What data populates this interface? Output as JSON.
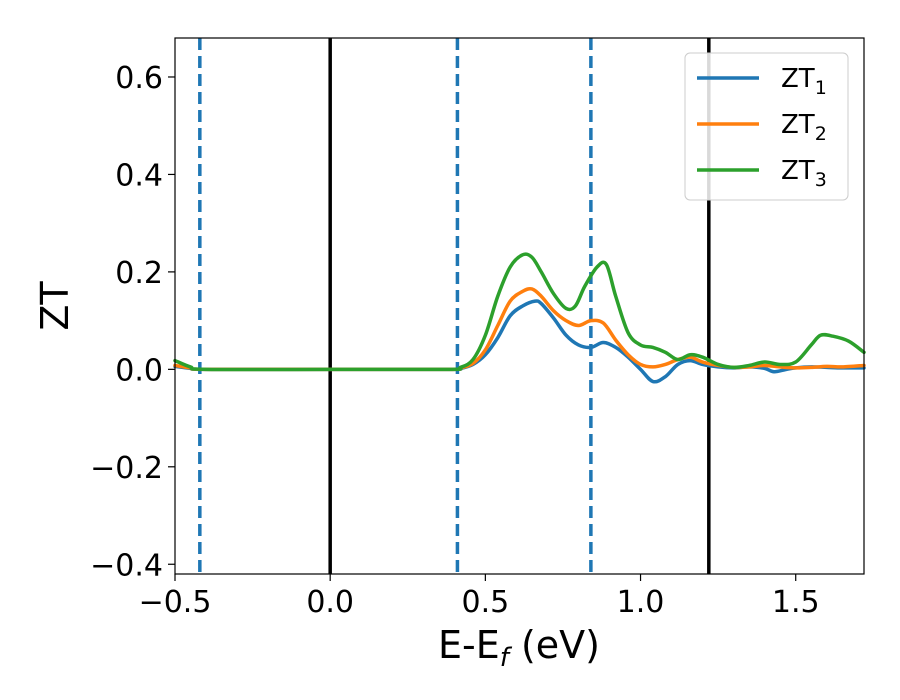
{
  "chart_data": {
    "type": "line",
    "xlabel": "E-E",
    "xlabel_subscript": "f",
    "xlabel_unit": " (eV)",
    "ylabel": "ZT",
    "xlim": [
      -0.5,
      1.72
    ],
    "ylim": [
      -0.42,
      0.68
    ],
    "xticks": [
      -0.5,
      0.0,
      0.5,
      1.0,
      1.5
    ],
    "xtick_labels": [
      "−0.5",
      "0.0",
      "0.5",
      "1.0",
      "1.5"
    ],
    "yticks": [
      -0.4,
      -0.2,
      0.0,
      0.2,
      0.4,
      0.6
    ],
    "ytick_labels": [
      "−0.4",
      "−0.2",
      "0.0",
      "0.2",
      "0.4",
      "0.6"
    ],
    "grid": false,
    "legend_position": "top-right",
    "series": [
      {
        "name": "ZT",
        "subscript": "1",
        "color": "#1f77b4",
        "x": [
          -0.5,
          -0.45,
          -0.4,
          0.0,
          0.38,
          0.42,
          0.46,
          0.5,
          0.54,
          0.58,
          0.62,
          0.66,
          0.68,
          0.72,
          0.76,
          0.8,
          0.84,
          0.88,
          0.92,
          0.96,
          1.0,
          1.04,
          1.08,
          1.12,
          1.16,
          1.2,
          1.25,
          1.3,
          1.35,
          1.4,
          1.43,
          1.47,
          1.5,
          1.55,
          1.6,
          1.65,
          1.72
        ],
        "y": [
          0.006,
          0.002,
          0.0,
          0.0,
          0.0,
          0.002,
          0.01,
          0.03,
          0.065,
          0.11,
          0.13,
          0.14,
          0.135,
          0.105,
          0.07,
          0.05,
          0.045,
          0.055,
          0.045,
          0.025,
          0.0,
          -0.025,
          -0.015,
          0.01,
          0.018,
          0.01,
          0.005,
          0.003,
          0.005,
          0.002,
          -0.005,
          0.0,
          0.003,
          0.005,
          0.004,
          0.003,
          0.003
        ]
      },
      {
        "name": "ZT",
        "subscript": "2",
        "color": "#ff7f0e",
        "x": [
          -0.5,
          -0.45,
          -0.4,
          0.0,
          0.38,
          0.42,
          0.46,
          0.5,
          0.54,
          0.58,
          0.62,
          0.65,
          0.68,
          0.72,
          0.76,
          0.8,
          0.84,
          0.88,
          0.92,
          0.96,
          1.0,
          1.04,
          1.08,
          1.12,
          1.16,
          1.2,
          1.25,
          1.3,
          1.35,
          1.4,
          1.45,
          1.5,
          1.55,
          1.6,
          1.65,
          1.72
        ],
        "y": [
          0.008,
          0.003,
          0.0,
          0.0,
          0.0,
          0.003,
          0.012,
          0.04,
          0.09,
          0.14,
          0.16,
          0.165,
          0.15,
          0.12,
          0.1,
          0.09,
          0.1,
          0.095,
          0.06,
          0.03,
          0.01,
          0.005,
          0.01,
          0.02,
          0.025,
          0.015,
          0.008,
          0.004,
          0.005,
          0.008,
          0.005,
          0.003,
          0.004,
          0.006,
          0.005,
          0.008
        ]
      },
      {
        "name": "ZT",
        "subscript": "3",
        "color": "#2ca02c",
        "x": [
          -0.5,
          -0.45,
          -0.4,
          0.0,
          0.38,
          0.42,
          0.46,
          0.5,
          0.54,
          0.58,
          0.62,
          0.65,
          0.68,
          0.72,
          0.76,
          0.79,
          0.82,
          0.86,
          0.89,
          0.92,
          0.96,
          1.0,
          1.04,
          1.08,
          1.12,
          1.16,
          1.2,
          1.25,
          1.3,
          1.35,
          1.4,
          1.45,
          1.5,
          1.55,
          1.58,
          1.62,
          1.67,
          1.72
        ],
        "y": [
          0.018,
          0.005,
          0.0,
          0.0,
          0.0,
          0.004,
          0.02,
          0.07,
          0.15,
          0.21,
          0.235,
          0.23,
          0.2,
          0.155,
          0.125,
          0.13,
          0.17,
          0.21,
          0.215,
          0.15,
          0.075,
          0.05,
          0.045,
          0.035,
          0.02,
          0.03,
          0.025,
          0.01,
          0.004,
          0.008,
          0.015,
          0.01,
          0.015,
          0.05,
          0.07,
          0.068,
          0.058,
          0.035
        ]
      }
    ],
    "vertical_lines": [
      {
        "x": 0.0,
        "style": "solid",
        "color": "#000000"
      },
      {
        "x": 1.22,
        "style": "solid",
        "color": "#000000"
      },
      {
        "x": -0.42,
        "style": "dashed",
        "color": "#1f77b4"
      },
      {
        "x": 0.41,
        "style": "dashed",
        "color": "#1f77b4"
      },
      {
        "x": 0.84,
        "style": "dashed",
        "color": "#1f77b4"
      }
    ]
  }
}
